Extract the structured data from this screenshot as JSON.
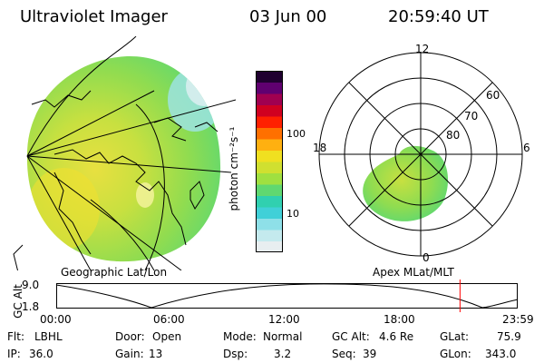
{
  "header": {
    "instrument": "Ultraviolet Imager",
    "date": "03 Jun 00",
    "time": "20:59:40 UT"
  },
  "geo_panel": {
    "label": "Geographic Lat/Lon"
  },
  "colorbar": {
    "unit_label": "photon cm⁻²s⁻¹",
    "tick_labels": [
      "100",
      "10"
    ],
    "colors": [
      "#e8eef0",
      "#c4eaee",
      "#8ee0e8",
      "#40d0d8",
      "#30d0b0",
      "#60d870",
      "#a0e040",
      "#d0e030",
      "#f0e020",
      "#ffb010",
      "#ff7000",
      "#ff2000",
      "#d00020",
      "#a00050",
      "#600070",
      "#200030"
    ]
  },
  "polar_panel": {
    "label": "Apex MLat/MLT",
    "mlt_labels": {
      "top": "12",
      "left": "18",
      "right": "6",
      "bottom": "0"
    },
    "lat_labels": [
      "60",
      "70",
      "80"
    ]
  },
  "altitude_plot": {
    "y_label": "GC Alt",
    "y_ticks": [
      "9.0",
      "1.8"
    ],
    "x_ticks": [
      "00:00",
      "06:00",
      "12:00",
      "18:00",
      "23:59"
    ],
    "current_time_marker_hours": 21.0
  },
  "status": {
    "filter_label": "Flt:",
    "filter_value": "LBHL",
    "ip_label": "IP:",
    "ip_value": "36.0",
    "door_label": "Door:",
    "door_value": "Open",
    "gain_label": "Gain:",
    "gain_value": "13",
    "mode_label": "Mode:",
    "mode_value": "Normal",
    "dsp_label": "Dsp:",
    "dsp_value": "3.2",
    "gcalt_label": "GC Alt:",
    "gcalt_value": "4.6 Re",
    "seq_label": "Seq:",
    "seq_value": "39",
    "glat_label": "GLat:",
    "glat_value": "75.9",
    "glon_label": "GLon:",
    "glon_value": "343.0"
  },
  "theme": {
    "marker_color": "#ff0000",
    "line_color": "#000000"
  }
}
